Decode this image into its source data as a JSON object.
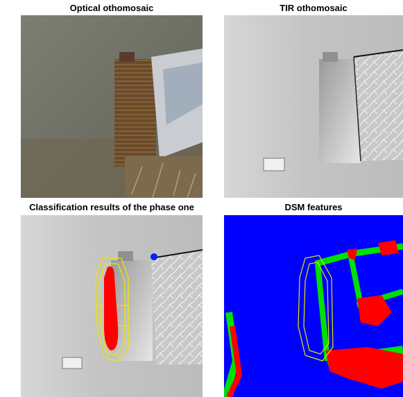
{
  "panels": [
    {
      "title": "Optical othomosaic"
    },
    {
      "title": "TIR othomosaic"
    },
    {
      "title": "Classification results of the phase one"
    },
    {
      "title": "DSM features"
    }
  ]
}
